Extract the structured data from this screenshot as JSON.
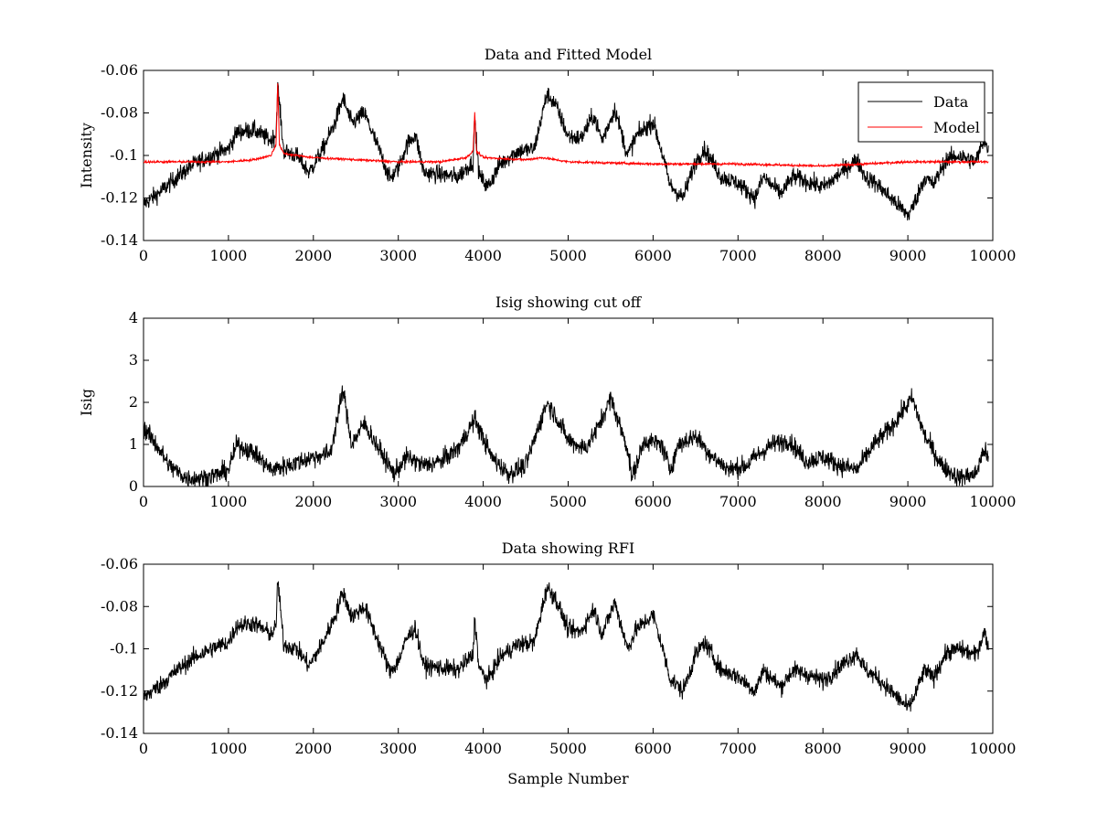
{
  "chart_data": [
    {
      "type": "line",
      "title": "Data and Fitted Model",
      "xlabel": "",
      "ylabel": "Intensity",
      "xlim": [
        0,
        10000
      ],
      "ylim": [
        -0.14,
        -0.06
      ],
      "xticks": [
        0,
        1000,
        2000,
        3000,
        4000,
        5000,
        6000,
        7000,
        8000,
        9000,
        10000
      ],
      "xtick_labels": [
        "0",
        "1000",
        "2000",
        "3000",
        "4000",
        "5000",
        "6000",
        "7000",
        "8000",
        "9000",
        "10000"
      ],
      "yticks": [
        -0.14,
        -0.12,
        -0.1,
        -0.08,
        -0.06
      ],
      "ytick_labels": [
        "-0.14",
        "-0.12",
        "-0.1",
        "-0.08",
        "-0.06"
      ],
      "legend": {
        "position": "top-right",
        "entries": [
          "Data",
          "Model"
        ]
      },
      "series": [
        {
          "name": "Data",
          "color": "#000000",
          "noise": 0.004,
          "x": [
            0,
            200,
            400,
            600,
            800,
            1000,
            1100,
            1300,
            1500,
            1560,
            1580,
            1650,
            1800,
            1950,
            2100,
            2250,
            2350,
            2450,
            2600,
            2800,
            2900,
            3000,
            3100,
            3200,
            3300,
            3500,
            3700,
            3880,
            3900,
            3950,
            4050,
            4200,
            4400,
            4600,
            4750,
            4850,
            5000,
            5150,
            5300,
            5400,
            5550,
            5700,
            5800,
            6000,
            6100,
            6200,
            6350,
            6500,
            6600,
            6700,
            6800,
            7000,
            7200,
            7300,
            7500,
            7650,
            7800,
            8000,
            8100,
            8300,
            8400,
            8500,
            8650,
            8800,
            9000,
            9050,
            9200,
            9300,
            9450,
            9600,
            9800,
            9900,
            9950
          ],
          "y": [
            -0.123,
            -0.117,
            -0.11,
            -0.104,
            -0.1,
            -0.097,
            -0.089,
            -0.088,
            -0.093,
            -0.09,
            -0.067,
            -0.098,
            -0.1,
            -0.108,
            -0.098,
            -0.085,
            -0.073,
            -0.085,
            -0.08,
            -0.1,
            -0.111,
            -0.106,
            -0.095,
            -0.09,
            -0.108,
            -0.109,
            -0.11,
            -0.103,
            -0.083,
            -0.109,
            -0.115,
            -0.104,
            -0.098,
            -0.097,
            -0.071,
            -0.076,
            -0.091,
            -0.092,
            -0.081,
            -0.093,
            -0.078,
            -0.1,
            -0.091,
            -0.084,
            -0.098,
            -0.114,
            -0.12,
            -0.103,
            -0.097,
            -0.103,
            -0.11,
            -0.113,
            -0.12,
            -0.11,
            -0.118,
            -0.11,
            -0.112,
            -0.115,
            -0.112,
            -0.105,
            -0.102,
            -0.11,
            -0.114,
            -0.12,
            -0.128,
            -0.125,
            -0.11,
            -0.114,
            -0.102,
            -0.1,
            -0.103,
            -0.092,
            -0.099
          ]
        },
        {
          "name": "Model",
          "color": "#ff0000",
          "noise": 0.0005,
          "x": [
            0,
            500,
            1000,
            1300,
            1500,
            1560,
            1580,
            1600,
            1650,
            1800,
            2000,
            2500,
            3000,
            3500,
            3800,
            3880,
            3900,
            3920,
            4000,
            4500,
            4700,
            5000,
            6000,
            7000,
            8000,
            8500,
            9000,
            9500,
            9950
          ],
          "y": [
            -0.103,
            -0.103,
            -0.103,
            -0.102,
            -0.1,
            -0.095,
            -0.066,
            -0.095,
            -0.099,
            -0.1,
            -0.101,
            -0.102,
            -0.103,
            -0.103,
            -0.101,
            -0.098,
            -0.08,
            -0.098,
            -0.101,
            -0.102,
            -0.101,
            -0.103,
            -0.104,
            -0.104,
            -0.105,
            -0.104,
            -0.103,
            -0.103,
            -0.103
          ]
        }
      ]
    },
    {
      "type": "line",
      "title": "Isig showing cut off",
      "xlabel": "",
      "ylabel": "Isig",
      "xlim": [
        0,
        10000
      ],
      "ylim": [
        0,
        4
      ],
      "xticks": [
        0,
        1000,
        2000,
        3000,
        4000,
        5000,
        6000,
        7000,
        8000,
        9000,
        10000
      ],
      "xtick_labels": [
        "0",
        "1000",
        "2000",
        "3000",
        "4000",
        "5000",
        "6000",
        "7000",
        "8000",
        "9000",
        "10000"
      ],
      "yticks": [
        0,
        1,
        2,
        3,
        4
      ],
      "ytick_labels": [
        "0",
        "1",
        "2",
        "3",
        "4"
      ],
      "series": [
        {
          "name": "Isig",
          "color": "#000000",
          "noise": 0.22,
          "x": [
            0,
            150,
            300,
            500,
            700,
            900,
            1000,
            1100,
            1300,
            1500,
            1700,
            2000,
            2200,
            2350,
            2450,
            2600,
            2800,
            2950,
            3100,
            3300,
            3500,
            3700,
            3900,
            4100,
            4300,
            4500,
            4750,
            4850,
            5000,
            5200,
            5350,
            5500,
            5700,
            5750,
            5900,
            6100,
            6200,
            6300,
            6500,
            6700,
            6900,
            7100,
            7200,
            7400,
            7600,
            7800,
            8000,
            8200,
            8400,
            8600,
            8800,
            9050,
            9200,
            9400,
            9600,
            9800,
            9900,
            9950
          ],
          "y": [
            1.4,
            1.0,
            0.5,
            0.2,
            0.2,
            0.3,
            0.4,
            1.0,
            0.8,
            0.4,
            0.5,
            0.7,
            0.8,
            2.3,
            1.0,
            1.5,
            0.8,
            0.3,
            0.7,
            0.5,
            0.6,
            0.9,
            1.6,
            0.7,
            0.3,
            0.5,
            2.0,
            1.7,
            1.1,
            0.9,
            1.4,
            2.1,
            0.9,
            0.2,
            1.1,
            1.0,
            0.4,
            1.0,
            1.2,
            0.7,
            0.4,
            0.5,
            0.7,
            1.0,
            1.1,
            0.6,
            0.7,
            0.5,
            0.4,
            1.0,
            1.4,
            2.1,
            1.2,
            0.5,
            0.2,
            0.3,
            0.9,
            0.6
          ],
          "clip_min": 0
        }
      ]
    },
    {
      "type": "line",
      "title": "Data showing RFI",
      "xlabel": "Sample Number",
      "ylabel": "",
      "xlim": [
        0,
        10000
      ],
      "ylim": [
        -0.14,
        -0.06
      ],
      "xticks": [
        0,
        1000,
        2000,
        3000,
        4000,
        5000,
        6000,
        7000,
        8000,
        9000,
        10000
      ],
      "xtick_labels": [
        "0",
        "1000",
        "2000",
        "3000",
        "4000",
        "5000",
        "6000",
        "7000",
        "8000",
        "9000",
        "10000"
      ],
      "yticks": [
        -0.14,
        -0.12,
        -0.1,
        -0.08,
        -0.06
      ],
      "ytick_labels": [
        "-0.14",
        "-0.12",
        "-0.1",
        "-0.08",
        "-0.06"
      ],
      "series": [
        {
          "name": "Data",
          "color": "#000000",
          "noise": 0.004,
          "x": [
            0,
            200,
            400,
            600,
            800,
            1000,
            1100,
            1300,
            1500,
            1560,
            1580,
            1650,
            1800,
            1950,
            2100,
            2250,
            2350,
            2450,
            2600,
            2800,
            2900,
            3000,
            3100,
            3200,
            3300,
            3500,
            3700,
            3880,
            3900,
            3950,
            4050,
            4200,
            4400,
            4600,
            4750,
            4850,
            5000,
            5150,
            5300,
            5400,
            5550,
            5700,
            5800,
            6000,
            6100,
            6200,
            6350,
            6500,
            6600,
            6700,
            6800,
            7000,
            7200,
            7300,
            7500,
            7650,
            7800,
            8000,
            8100,
            8300,
            8400,
            8500,
            8650,
            8800,
            9000,
            9050,
            9200,
            9300,
            9450,
            9600,
            9800,
            9900,
            9950
          ],
          "y": [
            -0.123,
            -0.117,
            -0.11,
            -0.104,
            -0.1,
            -0.097,
            -0.089,
            -0.088,
            -0.093,
            -0.09,
            -0.067,
            -0.098,
            -0.1,
            -0.108,
            -0.098,
            -0.085,
            -0.073,
            -0.085,
            -0.08,
            -0.1,
            -0.111,
            -0.106,
            -0.095,
            -0.09,
            -0.108,
            -0.109,
            -0.11,
            -0.103,
            -0.085,
            -0.109,
            -0.115,
            -0.104,
            -0.098,
            -0.097,
            -0.071,
            -0.076,
            -0.091,
            -0.092,
            -0.081,
            -0.093,
            -0.078,
            -0.1,
            -0.091,
            -0.084,
            -0.098,
            -0.114,
            -0.12,
            -0.103,
            -0.097,
            -0.103,
            -0.11,
            -0.113,
            -0.12,
            -0.11,
            -0.118,
            -0.11,
            -0.112,
            -0.115,
            -0.112,
            -0.105,
            -0.102,
            -0.11,
            -0.114,
            -0.12,
            -0.128,
            -0.125,
            -0.11,
            -0.114,
            -0.102,
            -0.1,
            -0.103,
            -0.092,
            -0.099
          ]
        }
      ]
    }
  ]
}
